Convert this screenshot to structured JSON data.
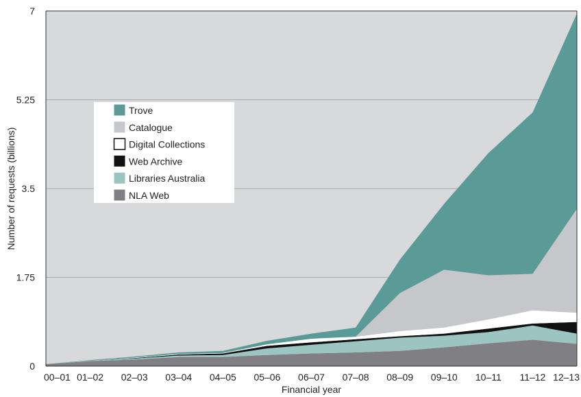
{
  "chart_data": {
    "type": "area",
    "stacked": true,
    "title": "",
    "xlabel": "Financial year",
    "ylabel": "Number of requests (billions)",
    "ylim": [
      0,
      7
    ],
    "yticks": [
      0,
      1.75,
      3.5,
      5.25,
      7
    ],
    "ytick_labels": [
      "0",
      "1.75",
      "3.5",
      "5.25",
      "7"
    ],
    "grid": true,
    "legend_position": "upper-left",
    "background_color": "#d8d9da",
    "categories": [
      "00–01",
      "01–02",
      "02–03",
      "03–04",
      "04–05",
      "05–06",
      "06–07",
      "07–08",
      "08–09",
      "09–10",
      "10–11",
      "11–12",
      "12–13"
    ],
    "series": [
      {
        "name": "NLA Web",
        "color": "#807f83",
        "values": [
          0.04,
          0.1,
          0.13,
          0.18,
          0.18,
          0.22,
          0.25,
          0.27,
          0.3,
          0.37,
          0.45,
          0.52,
          0.44
        ]
      },
      {
        "name": "Libraries Australia",
        "color": "#9cc4c1",
        "values": [
          0.0,
          0.01,
          0.02,
          0.03,
          0.04,
          0.13,
          0.17,
          0.22,
          0.26,
          0.23,
          0.22,
          0.28,
          0.2
        ]
      },
      {
        "name": "Web Archive",
        "color": "#111111",
        "values": [
          0.0,
          0.0,
          0.01,
          0.02,
          0.03,
          0.05,
          0.05,
          0.04,
          0.03,
          0.04,
          0.07,
          0.04,
          0.23
        ]
      },
      {
        "name": "Digital Collections",
        "color": "#ffffff",
        "values": [
          0.0,
          0.0,
          0.01,
          0.01,
          0.01,
          0.03,
          0.07,
          0.05,
          0.1,
          0.12,
          0.18,
          0.26,
          0.18
        ]
      },
      {
        "name": "Catalogue",
        "color": "#c6c7ca",
        "values": [
          0.0,
          0.0,
          0.0,
          0.0,
          0.0,
          0.0,
          0.0,
          0.0,
          0.75,
          1.14,
          0.87,
          0.72,
          2.05
        ]
      },
      {
        "name": "Trove",
        "color": "#5a9a97",
        "values": [
          0.0,
          0.01,
          0.02,
          0.03,
          0.04,
          0.07,
          0.1,
          0.18,
          0.66,
          1.3,
          2.41,
          3.18,
          3.85
        ]
      }
    ],
    "legend_order": [
      "Trove",
      "Catalogue",
      "Digital Collections",
      "Web Archive",
      "Libraries Australia",
      "NLA Web"
    ]
  }
}
